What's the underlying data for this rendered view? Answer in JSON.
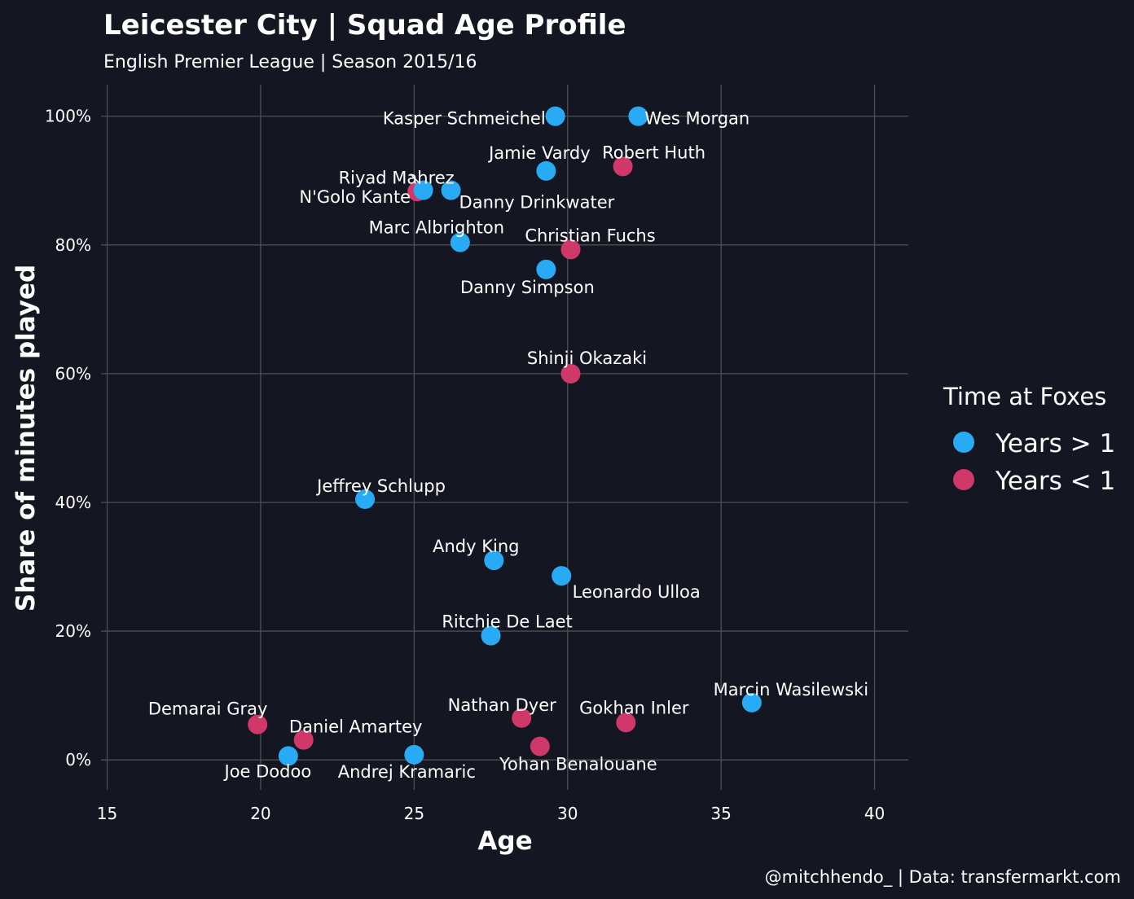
{
  "title": "Leicester City | Squad Age Profile",
  "subtitle": "English Premier League | Season 2015/16",
  "caption": "@mitchhendo_ | Data: transfermarkt.com",
  "chart_data": {
    "type": "scatter",
    "title": "Leicester City | Squad Age Profile",
    "subtitle": "English Premier League | Season 2015/16",
    "xlabel": "Age",
    "ylabel": "Share of minutes played",
    "xlim": [
      14.8,
      41.1
    ],
    "ylim": [
      -3.9,
      104.9
    ],
    "x_ticks": [
      15,
      20,
      25,
      30,
      35,
      40
    ],
    "y_ticks": [
      0,
      20,
      40,
      60,
      80,
      100
    ],
    "y_tick_labels": [
      "0%",
      "20%",
      "40%",
      "60%",
      "80%",
      "100%"
    ],
    "grid": true,
    "legend": {
      "title": "Time at Foxes",
      "position": "right",
      "entries": [
        {
          "label": "Years > 1",
          "color": "#29aaf4"
        },
        {
          "label": "Years < 1",
          "color": "#cf3868"
        }
      ]
    },
    "series": [
      {
        "name": "Years > 1",
        "color": "#29aaf4",
        "points": [
          {
            "label": "Kasper Schmeichel",
            "x": 29.6,
            "y": 100.0
          },
          {
            "label": "Wes Morgan",
            "x": 32.3,
            "y": 100.0
          },
          {
            "label": "Jamie Vardy",
            "x": 29.3,
            "y": 91.5
          },
          {
            "label": "Riyad Mahrez",
            "x": 25.3,
            "y": 88.5
          },
          {
            "label": "Danny Drinkwater",
            "x": 26.2,
            "y": 88.5
          },
          {
            "label": "Marc Albrighton",
            "x": 26.5,
            "y": 80.4
          },
          {
            "label": "Danny Simpson",
            "x": 29.3,
            "y": 76.2
          },
          {
            "label": "Jeffrey Schlupp",
            "x": 23.4,
            "y": 40.5
          },
          {
            "label": "Andy King",
            "x": 27.6,
            "y": 31.0
          },
          {
            "label": "Leonardo Ulloa",
            "x": 29.8,
            "y": 28.6
          },
          {
            "label": "Ritchie De Laet",
            "x": 27.5,
            "y": 19.3
          },
          {
            "label": "Marcin Wasilewski",
            "x": 36.0,
            "y": 8.9
          },
          {
            "label": "Joe Dodoo",
            "x": 20.9,
            "y": 0.6
          },
          {
            "label": "Andrej Kramaric",
            "x": 25.0,
            "y": 0.8
          }
        ]
      },
      {
        "name": "Years < 1",
        "color": "#cf3868",
        "points": [
          {
            "label": "Robert Huth",
            "x": 31.8,
            "y": 92.2
          },
          {
            "label": "N'Golo Kante",
            "x": 25.1,
            "y": 88.3
          },
          {
            "label": "Christian Fuchs",
            "x": 30.1,
            "y": 79.3
          },
          {
            "label": "Shinji Okazaki",
            "x": 30.1,
            "y": 60.0
          },
          {
            "label": "Demarai Gray",
            "x": 19.9,
            "y": 5.5
          },
          {
            "label": "Daniel Amartey",
            "x": 21.4,
            "y": 3.1
          },
          {
            "label": "Nathan Dyer",
            "x": 28.5,
            "y": 6.5
          },
          {
            "label": "Gokhan Inler",
            "x": 31.9,
            "y": 5.8
          },
          {
            "label": "Yohan Benalouane",
            "x": 29.1,
            "y": 2.1
          }
        ]
      }
    ]
  }
}
